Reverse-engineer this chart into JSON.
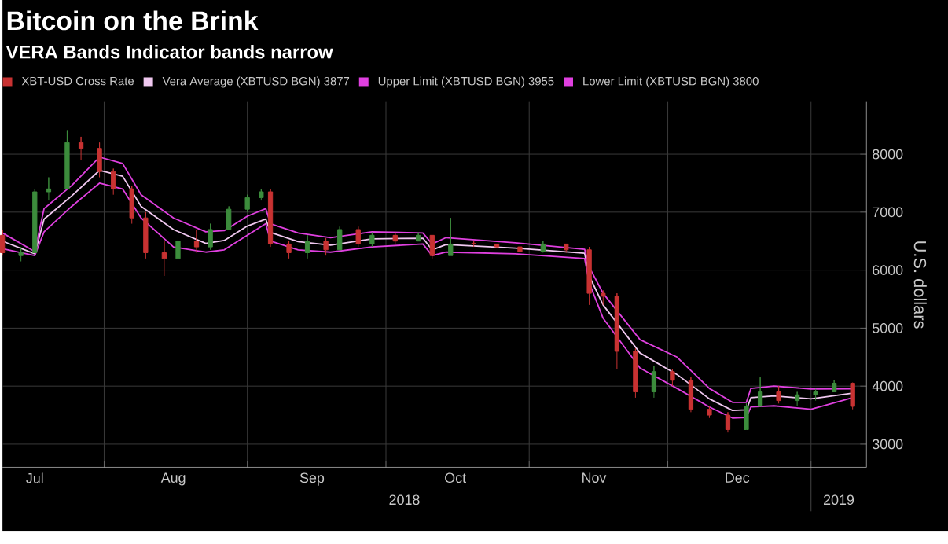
{
  "chart_data": {
    "type": "line",
    "title": "Bitcoin on the Brink",
    "subtitle": "VERA Bands Indicator bands narrow",
    "ylabel": "U.S. dollars",
    "x": [
      "2018-07-10",
      "2018-07-17",
      "2018-07-19",
      "2018-07-25",
      "2018-07-31",
      "2018-08-05",
      "2018-08-09",
      "2018-08-16",
      "2018-08-23",
      "2018-08-27",
      "2018-09-01",
      "2018-09-05",
      "2018-09-06",
      "2018-09-12",
      "2018-09-19",
      "2018-09-28",
      "2018-10-09",
      "2018-10-11",
      "2018-10-14",
      "2018-10-29",
      "2018-11-13",
      "2018-11-14",
      "2018-11-17",
      "2018-11-25",
      "2018-12-03",
      "2018-12-10",
      "2018-12-15",
      "2018-12-18",
      "2018-12-19",
      "2018-12-24",
      "2019-01-01",
      "2019-01-10"
    ],
    "series": [
      {
        "name": "XBT-USD Cross Rate",
        "type": "candlestick",
        "color": "#c83232",
        "x": [
          "2018-07-10",
          "2018-07-14",
          "2018-07-17",
          "2018-07-20",
          "2018-07-24",
          "2018-07-27",
          "2018-07-31",
          "2018-08-03",
          "2018-08-07",
          "2018-08-10",
          "2018-08-14",
          "2018-08-17",
          "2018-08-21",
          "2018-08-24",
          "2018-08-28",
          "2018-09-01",
          "2018-09-04",
          "2018-09-06",
          "2018-09-10",
          "2018-09-14",
          "2018-09-18",
          "2018-09-21",
          "2018-09-25",
          "2018-09-28",
          "2018-10-03",
          "2018-10-08",
          "2018-10-11",
          "2018-10-15",
          "2018-10-20",
          "2018-10-25",
          "2018-10-30",
          "2018-11-04",
          "2018-11-09",
          "2018-11-14",
          "2018-11-17",
          "2018-11-20",
          "2018-11-24",
          "2018-11-28",
          "2018-12-02",
          "2018-12-06",
          "2018-12-10",
          "2018-12-14",
          "2018-12-18",
          "2018-12-21",
          "2018-12-25",
          "2018-12-29",
          "2019-01-02",
          "2019-01-06",
          "2019-01-10"
        ],
        "ohlc": [
          [
            6600,
            6700,
            6250,
            6300
          ],
          [
            6250,
            6400,
            6150,
            6300
          ],
          [
            6300,
            7400,
            6300,
            7350
          ],
          [
            7350,
            7600,
            7200,
            7400
          ],
          [
            7400,
            8400,
            7400,
            8200
          ],
          [
            8200,
            8300,
            7900,
            8100
          ],
          [
            8100,
            8200,
            7600,
            7700
          ],
          [
            7700,
            7750,
            7300,
            7400
          ],
          [
            7400,
            7450,
            6800,
            6900
          ],
          [
            6900,
            7000,
            6200,
            6300
          ],
          [
            6300,
            6500,
            5900,
            6200
          ],
          [
            6200,
            6600,
            6200,
            6500
          ],
          [
            6500,
            6700,
            6300,
            6400
          ],
          [
            6400,
            6800,
            6350,
            6700
          ],
          [
            6700,
            7100,
            6700,
            7050
          ],
          [
            7050,
            7300,
            7000,
            7250
          ],
          [
            7250,
            7400,
            7200,
            7350
          ],
          [
            7350,
            7400,
            6400,
            6450
          ],
          [
            6450,
            6500,
            6200,
            6300
          ],
          [
            6300,
            6600,
            6200,
            6500
          ],
          [
            6500,
            6550,
            6250,
            6350
          ],
          [
            6350,
            6750,
            6350,
            6700
          ],
          [
            6700,
            6750,
            6400,
            6450
          ],
          [
            6450,
            6650,
            6400,
            6600
          ],
          [
            6600,
            6650,
            6450,
            6500
          ],
          [
            6500,
            6650,
            6500,
            6600
          ],
          [
            6600,
            6600,
            6200,
            6250
          ],
          [
            6250,
            6900,
            6250,
            6450
          ],
          [
            6450,
            6500,
            6400,
            6460
          ],
          [
            6450,
            6450,
            6380,
            6400
          ],
          [
            6400,
            6420,
            6300,
            6320
          ],
          [
            6320,
            6500,
            6300,
            6450
          ],
          [
            6450,
            6450,
            6300,
            6350
          ],
          [
            6350,
            6400,
            5400,
            5600
          ],
          [
            5600,
            5650,
            5400,
            5550
          ],
          [
            5550,
            5600,
            4300,
            4600
          ],
          [
            4600,
            4650,
            3800,
            3900
          ],
          [
            3900,
            4350,
            3800,
            4250
          ],
          [
            4250,
            4300,
            4000,
            4100
          ],
          [
            4100,
            4150,
            3550,
            3600
          ],
          [
            3600,
            3650,
            3450,
            3500
          ],
          [
            3500,
            3550,
            3200,
            3250
          ],
          [
            3250,
            3700,
            3250,
            3650
          ],
          [
            3650,
            4150,
            3650,
            3900
          ],
          [
            3900,
            4000,
            3700,
            3750
          ],
          [
            3750,
            3900,
            3650,
            3850
          ],
          [
            3850,
            3950,
            3750,
            3900
          ],
          [
            3900,
            4100,
            3900,
            4050
          ],
          [
            4050,
            4060,
            3600,
            3650
          ]
        ],
        "colors": [
          "#c83232",
          "#3c8c3c",
          "#3c8c3c",
          "#3c8c3c",
          "#3c8c3c",
          "#c83232",
          "#c83232",
          "#c83232",
          "#c83232",
          "#c83232",
          "#c83232",
          "#3c8c3c",
          "#c83232",
          "#3c8c3c",
          "#3c8c3c",
          "#3c8c3c",
          "#3c8c3c",
          "#c83232",
          "#c83232",
          "#3c8c3c",
          "#c83232",
          "#3c8c3c",
          "#c83232",
          "#3c8c3c",
          "#c83232",
          "#3c8c3c",
          "#c83232",
          "#3c8c3c",
          "#c83232",
          "#c83232",
          "#c83232",
          "#3c8c3c",
          "#c83232",
          "#c83232",
          "#c83232",
          "#c83232",
          "#c83232",
          "#3c8c3c",
          "#c83232",
          "#c83232",
          "#c83232",
          "#c83232",
          "#3c8c3c",
          "#3c8c3c",
          "#c83232",
          "#3c8c3c",
          "#3c8c3c",
          "#3c8c3c",
          "#c83232"
        ]
      },
      {
        "name": "Vera Average (XBTUSD BGN) 3877",
        "color": "#f0c8f0",
        "values": [
          6500,
          6280,
          6880,
          7280,
          7720,
          7620,
          7100,
          6700,
          6460,
          6510,
          6760,
          6880,
          6650,
          6490,
          6430,
          6540,
          6550,
          6350,
          6440,
          6380,
          6290,
          5900,
          5400,
          4570,
          4200,
          3780,
          3580,
          3590,
          3800,
          3830,
          3780,
          3877
        ]
      },
      {
        "name": "Upper Limit (XBTUSD BGN) 3955",
        "color": "#e040e0",
        "values": [
          6640,
          6320,
          7060,
          7460,
          7950,
          7840,
          7300,
          6900,
          6660,
          6680,
          6930,
          7060,
          6800,
          6640,
          6560,
          6660,
          6640,
          6450,
          6560,
          6470,
          6360,
          6050,
          5600,
          4800,
          4500,
          3960,
          3720,
          3720,
          3960,
          4000,
          3950,
          3955
        ]
      },
      {
        "name": "Lower Limit (XBTUSD BGN) 3800",
        "color": "#e040e0",
        "values": [
          6370,
          6250,
          6660,
          7100,
          7500,
          7400,
          6900,
          6400,
          6310,
          6350,
          6600,
          6800,
          6500,
          6350,
          6310,
          6400,
          6450,
          6250,
          6310,
          6280,
          6200,
          5780,
          5170,
          4310,
          3960,
          3640,
          3450,
          3460,
          3640,
          3660,
          3600,
          3800
        ]
      }
    ],
    "xlim": [
      "2018-07-10",
      "2019-01-13"
    ],
    "xticks": [
      {
        "value": "2018-08-01",
        "label": null
      },
      {
        "value": "2018-09-01",
        "label": null
      },
      {
        "value": "2018-10-01",
        "label": null
      },
      {
        "value": "2018-11-01",
        "label": null
      },
      {
        "value": "2018-12-01",
        "label": null
      },
      {
        "value": "2019-01-01",
        "label": null
      },
      {
        "value": "2018-07-17",
        "label": "Jul"
      },
      {
        "value": "2018-08-16",
        "label": "Aug"
      },
      {
        "value": "2018-09-15",
        "label": "Sep"
      },
      {
        "value": "2018-10-16",
        "label": "Oct"
      },
      {
        "value": "2018-11-15",
        "label": "Nov"
      },
      {
        "value": "2018-12-16",
        "label": "Dec"
      }
    ],
    "x2lim": [
      "2018-07-10",
      "2019-01-13"
    ],
    "x2ticks": [
      {
        "value": "2018-10-05",
        "label": "2018"
      },
      {
        "value": "2019-01-01",
        "label": null
      },
      {
        "value": "2019-01-07",
        "label": "2019"
      }
    ],
    "ylim": [
      2600,
      8900
    ],
    "yticks": [
      3000,
      4000,
      5000,
      6000,
      7000,
      8000
    ],
    "grid": true,
    "legend": "top left",
    "marker": "none",
    "line_style": "solid"
  }
}
